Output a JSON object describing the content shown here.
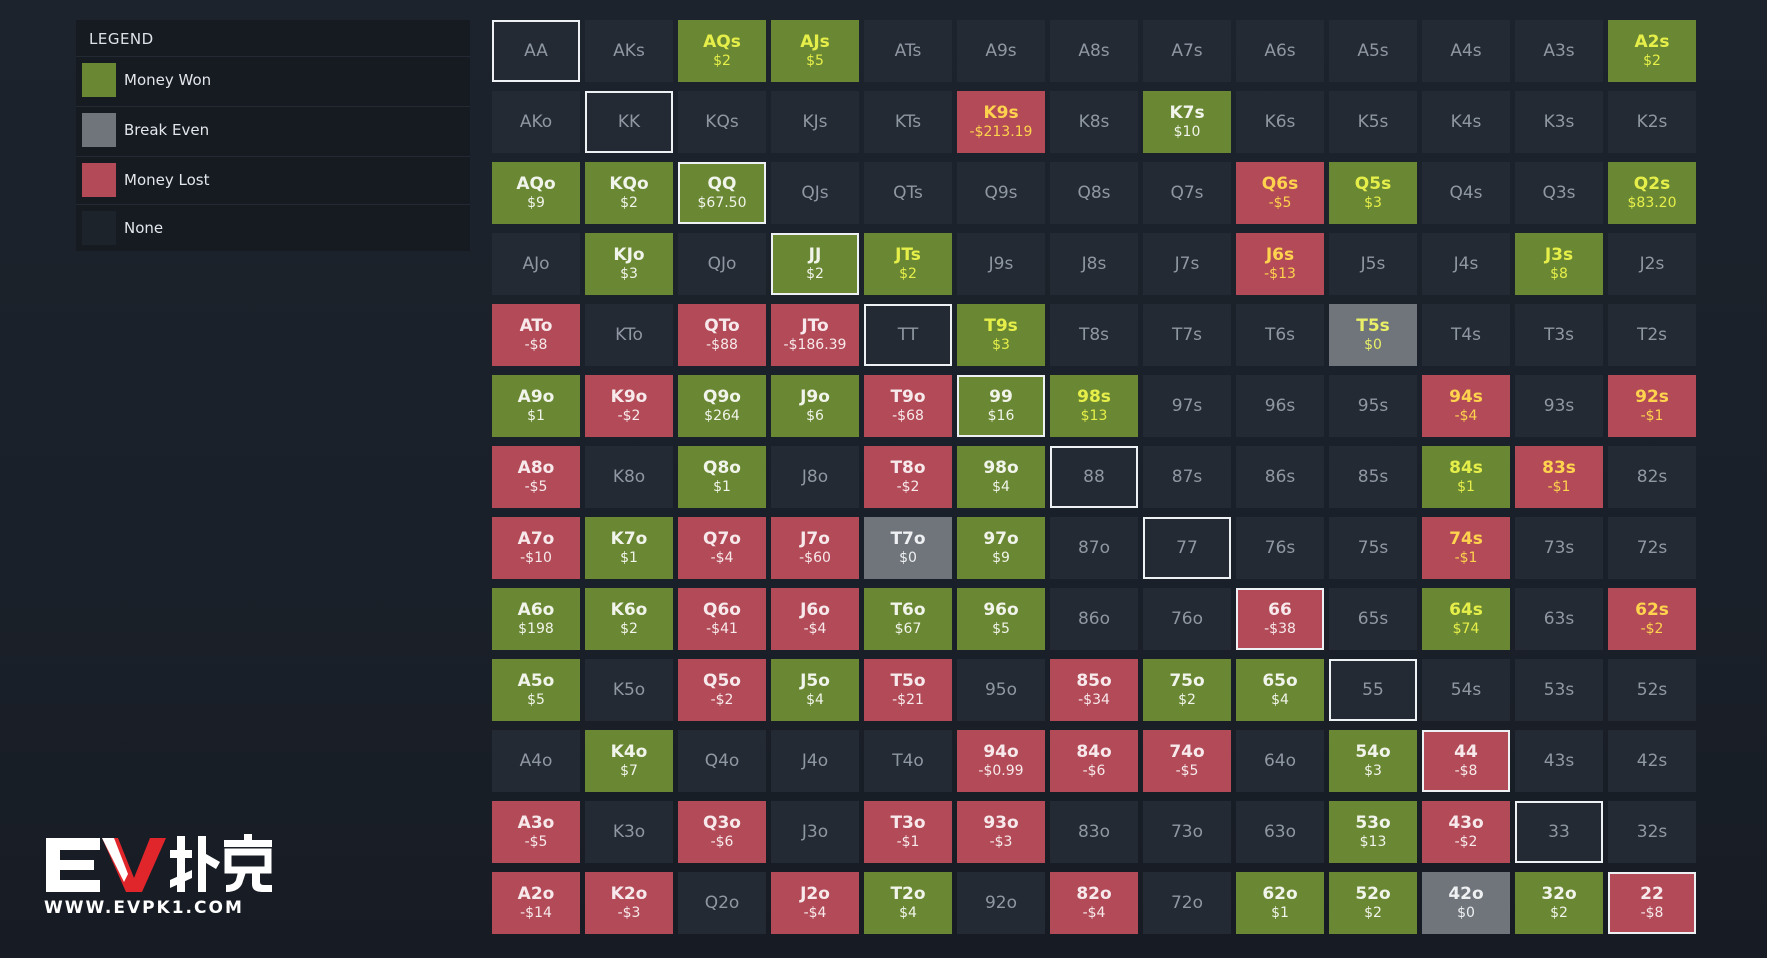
{
  "legend": {
    "title": "LEGEND",
    "items": [
      {
        "label": "Money Won",
        "color": "#6a8733"
      },
      {
        "label": "Break Even",
        "color": "#70757c"
      },
      {
        "label": "Money Lost",
        "color": "#b24b57"
      },
      {
        "label": "None",
        "color": "#232a34"
      }
    ]
  },
  "grid": {
    "cells": [
      {
        "hand": "AA",
        "amount": "",
        "status": "none",
        "pair": true
      },
      {
        "hand": "AKs",
        "amount": "",
        "status": "none"
      },
      {
        "hand": "AQs",
        "amount": "$2",
        "status": "won",
        "hl": true
      },
      {
        "hand": "AJs",
        "amount": "$5",
        "status": "won",
        "hl": true
      },
      {
        "hand": "ATs",
        "amount": "",
        "status": "none"
      },
      {
        "hand": "A9s",
        "amount": "",
        "status": "none"
      },
      {
        "hand": "A8s",
        "amount": "",
        "status": "none"
      },
      {
        "hand": "A7s",
        "amount": "",
        "status": "none"
      },
      {
        "hand": "A6s",
        "amount": "",
        "status": "none"
      },
      {
        "hand": "A5s",
        "amount": "",
        "status": "none"
      },
      {
        "hand": "A4s",
        "amount": "",
        "status": "none"
      },
      {
        "hand": "A3s",
        "amount": "",
        "status": "none"
      },
      {
        "hand": "A2s",
        "amount": "$2",
        "status": "won",
        "hl": true
      },
      {
        "hand": "AKo",
        "amount": "",
        "status": "none"
      },
      {
        "hand": "KK",
        "amount": "",
        "status": "none",
        "pair": true
      },
      {
        "hand": "KQs",
        "amount": "",
        "status": "none"
      },
      {
        "hand": "KJs",
        "amount": "",
        "status": "none"
      },
      {
        "hand": "KTs",
        "amount": "",
        "status": "none"
      },
      {
        "hand": "K9s",
        "amount": "-$213.19",
        "status": "lost",
        "hl": true
      },
      {
        "hand": "K8s",
        "amount": "",
        "status": "none"
      },
      {
        "hand": "K7s",
        "amount": "$10",
        "status": "won"
      },
      {
        "hand": "K6s",
        "amount": "",
        "status": "none"
      },
      {
        "hand": "K5s",
        "amount": "",
        "status": "none"
      },
      {
        "hand": "K4s",
        "amount": "",
        "status": "none"
      },
      {
        "hand": "K3s",
        "amount": "",
        "status": "none"
      },
      {
        "hand": "K2s",
        "amount": "",
        "status": "none"
      },
      {
        "hand": "AQo",
        "amount": "$9",
        "status": "won"
      },
      {
        "hand": "KQo",
        "amount": "$2",
        "status": "won"
      },
      {
        "hand": "QQ",
        "amount": "$67.50",
        "status": "won",
        "pair": true
      },
      {
        "hand": "QJs",
        "amount": "",
        "status": "none"
      },
      {
        "hand": "QTs",
        "amount": "",
        "status": "none"
      },
      {
        "hand": "Q9s",
        "amount": "",
        "status": "none"
      },
      {
        "hand": "Q8s",
        "amount": "",
        "status": "none"
      },
      {
        "hand": "Q7s",
        "amount": "",
        "status": "none"
      },
      {
        "hand": "Q6s",
        "amount": "-$5",
        "status": "lost",
        "hl": true
      },
      {
        "hand": "Q5s",
        "amount": "$3",
        "status": "won",
        "hl": true
      },
      {
        "hand": "Q4s",
        "amount": "",
        "status": "none"
      },
      {
        "hand": "Q3s",
        "amount": "",
        "status": "none"
      },
      {
        "hand": "Q2s",
        "amount": "$83.20",
        "status": "won",
        "hl": true
      },
      {
        "hand": "AJo",
        "amount": "",
        "status": "none"
      },
      {
        "hand": "KJo",
        "amount": "$3",
        "status": "won"
      },
      {
        "hand": "QJo",
        "amount": "",
        "status": "none"
      },
      {
        "hand": "JJ",
        "amount": "$2",
        "status": "won",
        "pair": true
      },
      {
        "hand": "JTs",
        "amount": "$2",
        "status": "won",
        "hl": true
      },
      {
        "hand": "J9s",
        "amount": "",
        "status": "none"
      },
      {
        "hand": "J8s",
        "amount": "",
        "status": "none"
      },
      {
        "hand": "J7s",
        "amount": "",
        "status": "none"
      },
      {
        "hand": "J6s",
        "amount": "-$13",
        "status": "lost",
        "hl": true
      },
      {
        "hand": "J5s",
        "amount": "",
        "status": "none"
      },
      {
        "hand": "J4s",
        "amount": "",
        "status": "none"
      },
      {
        "hand": "J3s",
        "amount": "$8",
        "status": "won",
        "hl": true
      },
      {
        "hand": "J2s",
        "amount": "",
        "status": "none"
      },
      {
        "hand": "ATo",
        "amount": "-$8",
        "status": "lost"
      },
      {
        "hand": "KTo",
        "amount": "",
        "status": "none"
      },
      {
        "hand": "QTo",
        "amount": "-$88",
        "status": "lost"
      },
      {
        "hand": "JTo",
        "amount": "-$186.39",
        "status": "lost"
      },
      {
        "hand": "TT",
        "amount": "",
        "status": "none",
        "pair": true
      },
      {
        "hand": "T9s",
        "amount": "$3",
        "status": "won",
        "hl": true
      },
      {
        "hand": "T8s",
        "amount": "",
        "status": "none"
      },
      {
        "hand": "T7s",
        "amount": "",
        "status": "none"
      },
      {
        "hand": "T6s",
        "amount": "",
        "status": "none"
      },
      {
        "hand": "T5s",
        "amount": "$0",
        "status": "even",
        "hl": true
      },
      {
        "hand": "T4s",
        "amount": "",
        "status": "none"
      },
      {
        "hand": "T3s",
        "amount": "",
        "status": "none"
      },
      {
        "hand": "T2s",
        "amount": "",
        "status": "none"
      },
      {
        "hand": "A9o",
        "amount": "$1",
        "status": "won"
      },
      {
        "hand": "K9o",
        "amount": "-$2",
        "status": "lost"
      },
      {
        "hand": "Q9o",
        "amount": "$264",
        "status": "won"
      },
      {
        "hand": "J9o",
        "amount": "$6",
        "status": "won"
      },
      {
        "hand": "T9o",
        "amount": "-$68",
        "status": "lost"
      },
      {
        "hand": "99",
        "amount": "$16",
        "status": "won",
        "pair": true
      },
      {
        "hand": "98s",
        "amount": "$13",
        "status": "won",
        "hl": true
      },
      {
        "hand": "97s",
        "amount": "",
        "status": "none"
      },
      {
        "hand": "96s",
        "amount": "",
        "status": "none"
      },
      {
        "hand": "95s",
        "amount": "",
        "status": "none"
      },
      {
        "hand": "94s",
        "amount": "-$4",
        "status": "lost",
        "hl": true
      },
      {
        "hand": "93s",
        "amount": "",
        "status": "none"
      },
      {
        "hand": "92s",
        "amount": "-$1",
        "status": "lost",
        "hl": true
      },
      {
        "hand": "A8o",
        "amount": "-$5",
        "status": "lost"
      },
      {
        "hand": "K8o",
        "amount": "",
        "status": "none"
      },
      {
        "hand": "Q8o",
        "amount": "$1",
        "status": "won"
      },
      {
        "hand": "J8o",
        "amount": "",
        "status": "none"
      },
      {
        "hand": "T8o",
        "amount": "-$2",
        "status": "lost"
      },
      {
        "hand": "98o",
        "amount": "$4",
        "status": "won"
      },
      {
        "hand": "88",
        "amount": "",
        "status": "none",
        "pair": true
      },
      {
        "hand": "87s",
        "amount": "",
        "status": "none"
      },
      {
        "hand": "86s",
        "amount": "",
        "status": "none"
      },
      {
        "hand": "85s",
        "amount": "",
        "status": "none"
      },
      {
        "hand": "84s",
        "amount": "$1",
        "status": "won",
        "hl": true
      },
      {
        "hand": "83s",
        "amount": "-$1",
        "status": "lost",
        "hl": true
      },
      {
        "hand": "82s",
        "amount": "",
        "status": "none"
      },
      {
        "hand": "A7o",
        "amount": "-$10",
        "status": "lost"
      },
      {
        "hand": "K7o",
        "amount": "$1",
        "status": "won"
      },
      {
        "hand": "Q7o",
        "amount": "-$4",
        "status": "lost"
      },
      {
        "hand": "J7o",
        "amount": "-$60",
        "status": "lost"
      },
      {
        "hand": "T7o",
        "amount": "$0",
        "status": "even"
      },
      {
        "hand": "97o",
        "amount": "$9",
        "status": "won"
      },
      {
        "hand": "87o",
        "amount": "",
        "status": "none"
      },
      {
        "hand": "77",
        "amount": "",
        "status": "none",
        "pair": true
      },
      {
        "hand": "76s",
        "amount": "",
        "status": "none"
      },
      {
        "hand": "75s",
        "amount": "",
        "status": "none"
      },
      {
        "hand": "74s",
        "amount": "-$1",
        "status": "lost",
        "hl": true
      },
      {
        "hand": "73s",
        "amount": "",
        "status": "none"
      },
      {
        "hand": "72s",
        "amount": "",
        "status": "none"
      },
      {
        "hand": "A6o",
        "amount": "$198",
        "status": "won"
      },
      {
        "hand": "K6o",
        "amount": "$2",
        "status": "won"
      },
      {
        "hand": "Q6o",
        "amount": "-$41",
        "status": "lost"
      },
      {
        "hand": "J6o",
        "amount": "-$4",
        "status": "lost"
      },
      {
        "hand": "T6o",
        "amount": "$67",
        "status": "won"
      },
      {
        "hand": "96o",
        "amount": "$5",
        "status": "won"
      },
      {
        "hand": "86o",
        "amount": "",
        "status": "none"
      },
      {
        "hand": "76o",
        "amount": "",
        "status": "none"
      },
      {
        "hand": "66",
        "amount": "-$38",
        "status": "lost",
        "pair": true
      },
      {
        "hand": "65s",
        "amount": "",
        "status": "none"
      },
      {
        "hand": "64s",
        "amount": "$74",
        "status": "won",
        "hl": true
      },
      {
        "hand": "63s",
        "amount": "",
        "status": "none"
      },
      {
        "hand": "62s",
        "amount": "-$2",
        "status": "lost",
        "hl": true
      },
      {
        "hand": "A5o",
        "amount": "$5",
        "status": "won"
      },
      {
        "hand": "K5o",
        "amount": "",
        "status": "none"
      },
      {
        "hand": "Q5o",
        "amount": "-$2",
        "status": "lost"
      },
      {
        "hand": "J5o",
        "amount": "$4",
        "status": "won"
      },
      {
        "hand": "T5o",
        "amount": "-$21",
        "status": "lost"
      },
      {
        "hand": "95o",
        "amount": "",
        "status": "none"
      },
      {
        "hand": "85o",
        "amount": "-$34",
        "status": "lost"
      },
      {
        "hand": "75o",
        "amount": "$2",
        "status": "won"
      },
      {
        "hand": "65o",
        "amount": "$4",
        "status": "won"
      },
      {
        "hand": "55",
        "amount": "",
        "status": "none",
        "pair": true
      },
      {
        "hand": "54s",
        "amount": "",
        "status": "none"
      },
      {
        "hand": "53s",
        "amount": "",
        "status": "none"
      },
      {
        "hand": "52s",
        "amount": "",
        "status": "none"
      },
      {
        "hand": "A4o",
        "amount": "",
        "status": "none"
      },
      {
        "hand": "K4o",
        "amount": "$7",
        "status": "won"
      },
      {
        "hand": "Q4o",
        "amount": "",
        "status": "none"
      },
      {
        "hand": "J4o",
        "amount": "",
        "status": "none"
      },
      {
        "hand": "T4o",
        "amount": "",
        "status": "none"
      },
      {
        "hand": "94o",
        "amount": "-$0.99",
        "status": "lost"
      },
      {
        "hand": "84o",
        "amount": "-$6",
        "status": "lost"
      },
      {
        "hand": "74o",
        "amount": "-$5",
        "status": "lost"
      },
      {
        "hand": "64o",
        "amount": "",
        "status": "none"
      },
      {
        "hand": "54o",
        "amount": "$3",
        "status": "won"
      },
      {
        "hand": "44",
        "amount": "-$8",
        "status": "lost",
        "pair": true
      },
      {
        "hand": "43s",
        "amount": "",
        "status": "none"
      },
      {
        "hand": "42s",
        "amount": "",
        "status": "none"
      },
      {
        "hand": "A3o",
        "amount": "-$5",
        "status": "lost"
      },
      {
        "hand": "K3o",
        "amount": "",
        "status": "none"
      },
      {
        "hand": "Q3o",
        "amount": "-$6",
        "status": "lost"
      },
      {
        "hand": "J3o",
        "amount": "",
        "status": "none"
      },
      {
        "hand": "T3o",
        "amount": "-$1",
        "status": "lost"
      },
      {
        "hand": "93o",
        "amount": "-$3",
        "status": "lost"
      },
      {
        "hand": "83o",
        "amount": "",
        "status": "none"
      },
      {
        "hand": "73o",
        "amount": "",
        "status": "none"
      },
      {
        "hand": "63o",
        "amount": "",
        "status": "none"
      },
      {
        "hand": "53o",
        "amount": "$13",
        "status": "won"
      },
      {
        "hand": "43o",
        "amount": "-$2",
        "status": "lost"
      },
      {
        "hand": "33",
        "amount": "",
        "status": "none",
        "pair": true
      },
      {
        "hand": "32s",
        "amount": "",
        "status": "none"
      },
      {
        "hand": "A2o",
        "amount": "-$14",
        "status": "lost"
      },
      {
        "hand": "K2o",
        "amount": "-$3",
        "status": "lost"
      },
      {
        "hand": "Q2o",
        "amount": "",
        "status": "none"
      },
      {
        "hand": "J2o",
        "amount": "-$4",
        "status": "lost"
      },
      {
        "hand": "T2o",
        "amount": "$4",
        "status": "won"
      },
      {
        "hand": "92o",
        "amount": "",
        "status": "none"
      },
      {
        "hand": "82o",
        "amount": "-$4",
        "status": "lost"
      },
      {
        "hand": "72o",
        "amount": "",
        "status": "none"
      },
      {
        "hand": "62o",
        "amount": "$1",
        "status": "won"
      },
      {
        "hand": "52o",
        "amount": "$2",
        "status": "won"
      },
      {
        "hand": "42o",
        "amount": "$0",
        "status": "even"
      },
      {
        "hand": "32o",
        "amount": "$2",
        "status": "won"
      },
      {
        "hand": "22",
        "amount": "-$8",
        "status": "lost",
        "pair": true
      }
    ]
  },
  "logo": {
    "brand": "EV扑克",
    "url": "WWW.EVPK1.COM",
    "icon": "ev-logo-icon"
  }
}
